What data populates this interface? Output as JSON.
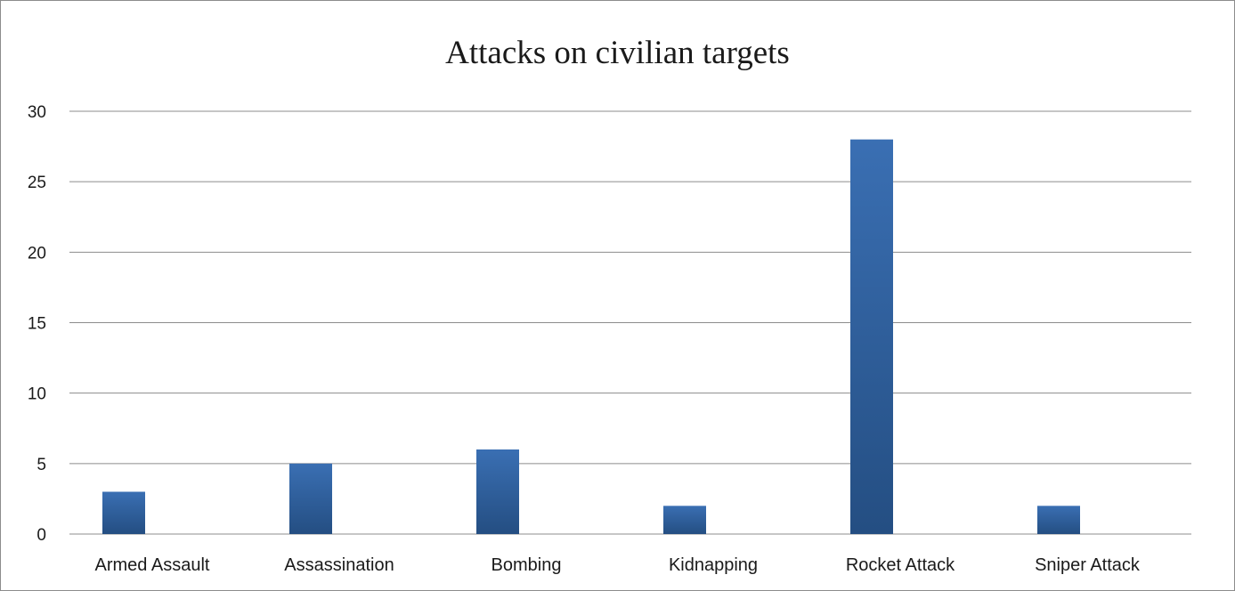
{
  "chart_data": {
    "type": "bar",
    "title": "Attacks on civilian targets",
    "categories": [
      "Armed Assault",
      "Assassination",
      "Bombing",
      "Kidnapping",
      "Rocket Attack",
      "Sniper Attack"
    ],
    "values": [
      3,
      5,
      6,
      2,
      28,
      2
    ],
    "yticks": [
      0,
      5,
      10,
      15,
      20,
      25,
      30
    ],
    "ylim": [
      0,
      30
    ],
    "grid": true,
    "legend": "none",
    "xlabel": "",
    "ylabel": "",
    "colors": {
      "bar_light": "#3a6fb3",
      "bar_dark": "#244e82",
      "grid": "#8c8c8c"
    }
  }
}
